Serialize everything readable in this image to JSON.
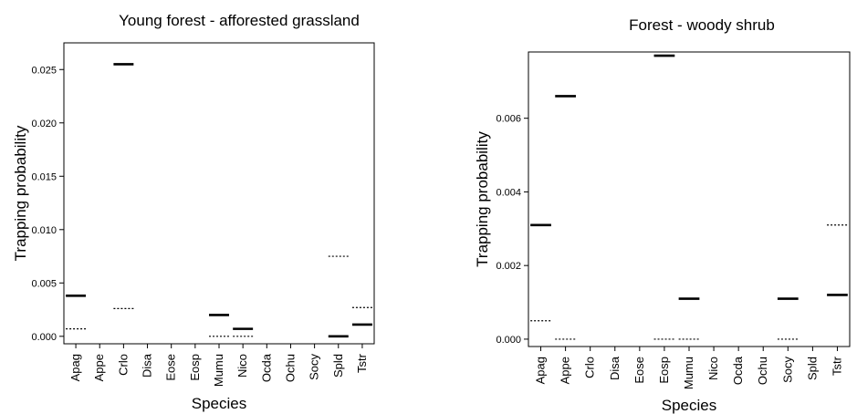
{
  "chart_data": [
    {
      "type": "scatter",
      "title": "Young forest - afforested grassland",
      "xlabel": "Species",
      "ylabel": "Trapping probability",
      "categories": [
        "Apag",
        "Appe",
        "Crlo",
        "Disa",
        "Eose",
        "Eosp",
        "Mumu",
        "Nico",
        "Ocda",
        "Ochu",
        "Socy",
        "Spld",
        "Tstr"
      ],
      "ylim": [
        -0.0007,
        0.0275
      ],
      "yticks": [
        0.0,
        0.005,
        0.01,
        0.015,
        0.02,
        0.025
      ],
      "ytick_labels": [
        "0.000",
        "0.005",
        "0.010",
        "0.015",
        "0.020",
        "0.025"
      ],
      "legend": "none",
      "grid": false,
      "series": [
        {
          "style": "solid",
          "values": [
            0.0038,
            null,
            0.0255,
            null,
            null,
            null,
            0.002,
            0.0007,
            null,
            null,
            null,
            0.0,
            0.0011
          ]
        },
        {
          "style": "dotted",
          "values": [
            0.0007,
            null,
            0.0026,
            null,
            null,
            null,
            0.0,
            0.0,
            null,
            null,
            null,
            0.0075,
            0.0027
          ]
        }
      ]
    },
    {
      "type": "scatter",
      "title": "Forest - woody shrub",
      "xlabel": "Species",
      "ylabel": "Trapping probability",
      "categories": [
        "Apag",
        "Appe",
        "Crlo",
        "Disa",
        "Eose",
        "Eosp",
        "Mumu",
        "Nico",
        "Ocda",
        "Ochu",
        "Socy",
        "Spld",
        "Tstr"
      ],
      "ylim": [
        -0.0002,
        0.0078
      ],
      "yticks": [
        0.0,
        0.002,
        0.004,
        0.006
      ],
      "ytick_labels": [
        "0.000",
        "0.002",
        "0.004",
        "0.006"
      ],
      "legend": "none",
      "grid": false,
      "series": [
        {
          "style": "solid",
          "values": [
            0.0031,
            0.0066,
            null,
            null,
            null,
            0.0077,
            0.0011,
            null,
            null,
            null,
            0.0011,
            null,
            0.0012
          ]
        },
        {
          "style": "dotted",
          "values": [
            0.0005,
            0.0,
            null,
            null,
            null,
            0.0,
            0.0,
            null,
            null,
            null,
            0.0,
            null,
            0.0031
          ]
        }
      ]
    }
  ]
}
